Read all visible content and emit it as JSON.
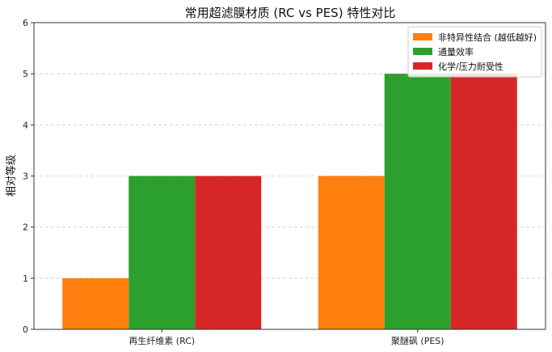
{
  "chart_data": {
    "type": "bar",
    "title": "常用超滤膜材质 (RC vs PES) 特性对比",
    "xlabel": "",
    "ylabel": "相对等级",
    "ylim": [
      0,
      6
    ],
    "yticks": [
      0,
      1,
      2,
      3,
      4,
      5,
      6
    ],
    "categories": [
      "再生纤维素 (RC)",
      "聚醚砜 (PES)"
    ],
    "series": [
      {
        "name": "非特异性结合 (越低越好)",
        "values": [
          1,
          3
        ],
        "color": "#ff7f0e"
      },
      {
        "name": "通量效率",
        "values": [
          3,
          5
        ],
        "color": "#2ca02c"
      },
      {
        "name": "化学/压力耐受性",
        "values": [
          3,
          5
        ],
        "color": "#d62728"
      }
    ],
    "grid": {
      "y": true,
      "style": "dashed"
    },
    "legend": {
      "position": "top-right"
    }
  }
}
